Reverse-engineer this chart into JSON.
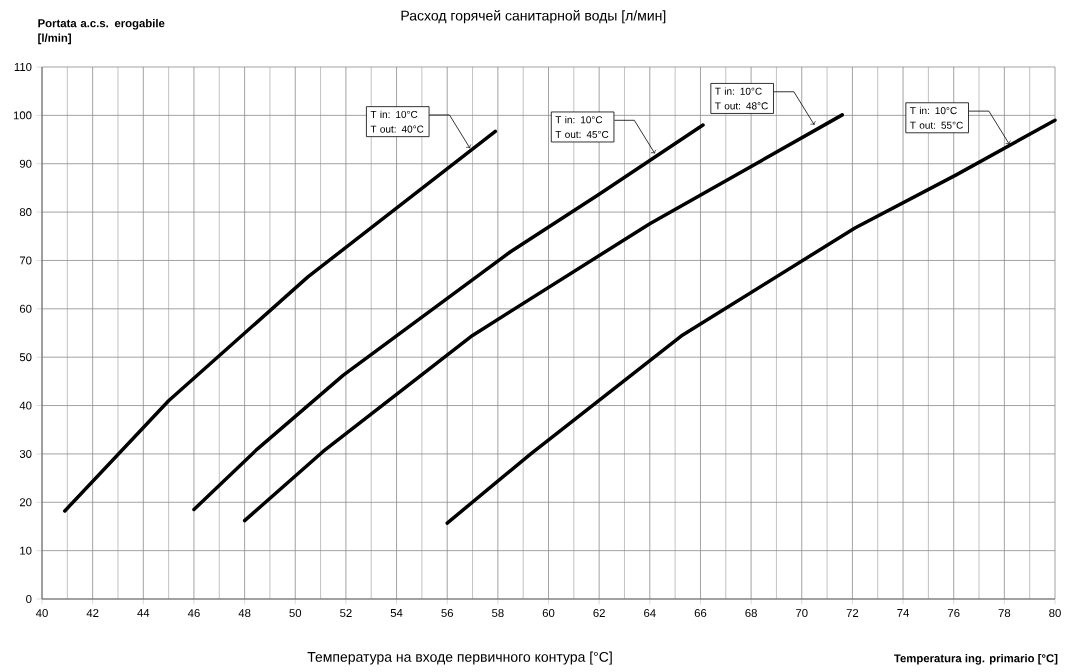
{
  "chart_data": {
    "type": "line",
    "title": "Расход горячей санитарной воды [л/мин]",
    "xlabel": "Температура на входе первичного контура [°C]",
    "ylabel": "Portata a.c.s. erogabile [l/min]",
    "series": [
      {
        "color": "#000000",
        "x": [
          40.9,
          45,
          50.5,
          57.9
        ],
        "values": [
          18.2,
          41,
          66.6,
          96.7
        ]
      },
      {
        "color": "#000000",
        "x": [
          46,
          48.5,
          51.9,
          58.5,
          62,
          66.1
        ],
        "values": [
          18.5,
          31,
          46.3,
          71.8,
          83.7,
          98
        ]
      },
      {
        "color": "#000000",
        "x": [
          48,
          51.1,
          57,
          64,
          71.6
        ],
        "values": [
          16.2,
          30.5,
          54.5,
          77.6,
          100.1
        ]
      },
      {
        "color": "#000000",
        "x": [
          56,
          59.3,
          65.3,
          72.1,
          76.1,
          80
        ],
        "values": [
          15.7,
          30,
          54.6,
          76.7,
          87.7,
          99
        ]
      }
    ],
    "annotations": [
      {
        "text": "T in: 10°C T out: 40°C",
        "x": 56.9,
        "y": 93.2
      },
      {
        "text": "T in: 10°C T out: 45°C",
        "x": 64.2,
        "y": 92.1
      },
      {
        "text": "T in: 10°C T out: 48°C",
        "x": 70.5,
        "y": 98
      },
      {
        "text": "T in: 10°C T out: 55°C",
        "x": 78.2,
        "y": 94
      },
      "Temperatura ing. primario [°C]"
    ],
    "xlim": [
      40,
      80
    ],
    "ylim": [
      0,
      110
    ],
    "xticks": [
      40,
      42,
      44,
      46,
      48,
      50,
      52,
      54,
      56,
      58,
      60,
      62,
      64,
      66,
      68,
      70,
      72,
      74,
      76,
      78,
      80
    ],
    "yticks": [
      0,
      10,
      20,
      30,
      40,
      50,
      60,
      70,
      80,
      90,
      100,
      110
    ],
    "grid": true,
    "line_style": "solid",
    "marker": "none"
  }
}
